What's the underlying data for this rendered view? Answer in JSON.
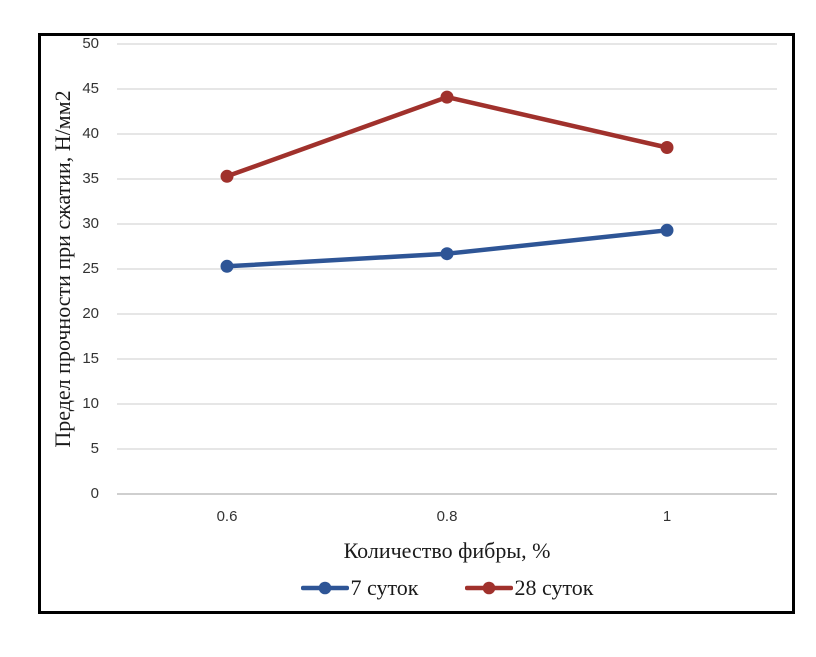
{
  "figure": {
    "background": "#FFFFFF",
    "border_color": "#000000"
  },
  "chart_data": {
    "type": "line",
    "title": "",
    "categories": [
      "0.6",
      "0.8",
      "1"
    ],
    "xlabel": "Количество фибры, %",
    "ylabel": "Предел прочности при сжатии, Н/мм2",
    "ylim": [
      0,
      50
    ],
    "yticks": [
      0,
      5,
      10,
      15,
      20,
      25,
      30,
      35,
      40,
      45,
      50
    ],
    "grid": "horizontal gridlines on, vertical off",
    "gridline_color": "#D6D6D6",
    "axis_line_color": "#BFBFBF",
    "legend_position": "bottom",
    "series": [
      {
        "name": "7 суток",
        "color": "#2E5596",
        "values": [
          25.3,
          26.7,
          29.3
        ]
      },
      {
        "name": "28 суток",
        "color": "#A0312C",
        "values": [
          35.3,
          44.1,
          38.5
        ]
      }
    ]
  }
}
